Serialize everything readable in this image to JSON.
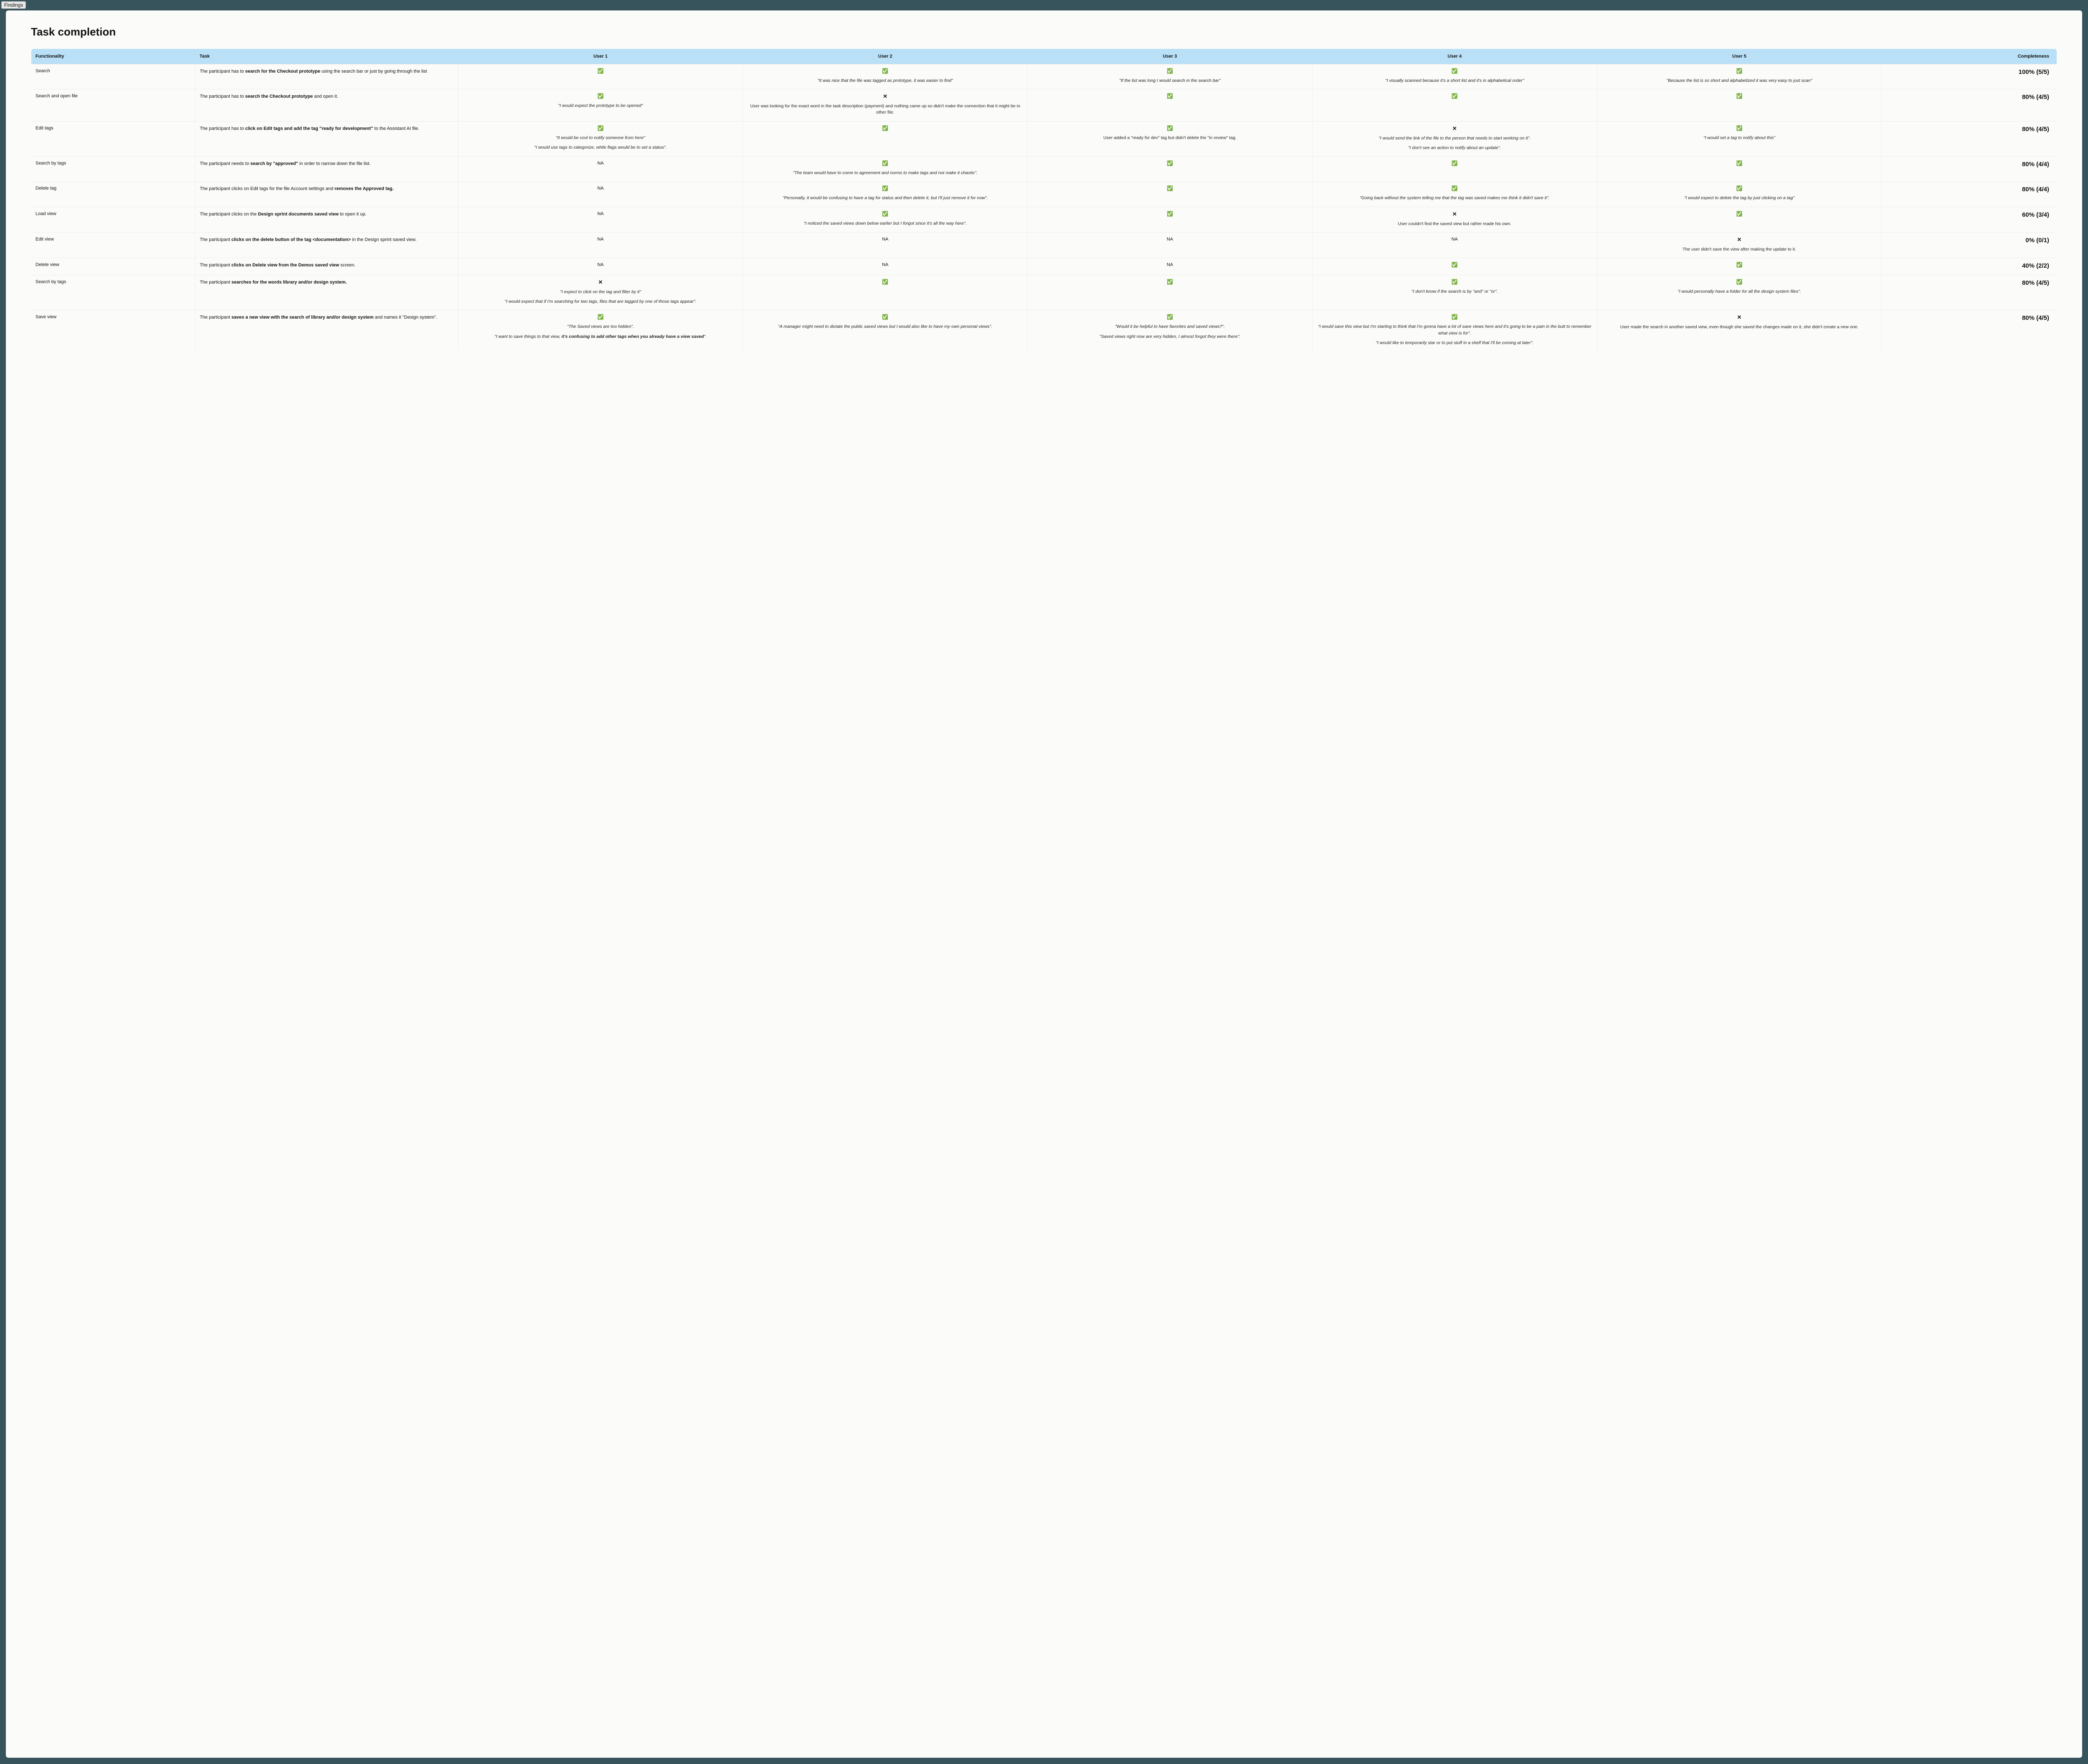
{
  "top_tab": "Findings",
  "title": "Task completion",
  "icons": {
    "check": "✅",
    "cross": "✕",
    "na": "NA"
  },
  "columns": {
    "functionality": "Functionality",
    "task": "Task",
    "users": [
      "User 1",
      "User 2",
      "User 3",
      "User 4",
      "User 5"
    ],
    "completeness": "Completeness"
  },
  "rows": [
    {
      "functionality": "Search",
      "task_parts": [
        {
          "t": "The participant has to "
        },
        {
          "t": "search for the Checkout prototype",
          "b": true
        },
        {
          "t": " using the search bar or just by going through the list"
        }
      ],
      "users": [
        {
          "status": "check",
          "notes": []
        },
        {
          "status": "check",
          "notes": [
            {
              "t": "\"It was nice that the file was tagged as prototype, it was easier to find\""
            }
          ]
        },
        {
          "status": "check",
          "notes": [
            {
              "t": "\"If the list was long I would search in the search bar\""
            }
          ]
        },
        {
          "status": "check",
          "notes": [
            {
              "t": "\"I visually scanned because it's a short list and it's in alphabetical order\""
            }
          ]
        },
        {
          "status": "check",
          "notes": [
            {
              "t": "\"Because the list is so short and alphabetized it was very easy to just scan\""
            }
          ]
        }
      ],
      "completeness": "100% (5/5)"
    },
    {
      "functionality": "Search and open file",
      "task_parts": [
        {
          "t": "The participant has to "
        },
        {
          "t": "search the Checkout prototype",
          "b": true
        },
        {
          "t": " and open it."
        }
      ],
      "users": [
        {
          "status": "check",
          "notes": [
            {
              "t": "\"I would expect the prototype to be opened\""
            }
          ]
        },
        {
          "status": "cross",
          "notes": [
            {
              "t": "User was looking for the exact word in the task description (payment) and nothing came up so didn't make the connection that it might be in other file.",
              "plain": true
            }
          ]
        },
        {
          "status": "check",
          "notes": []
        },
        {
          "status": "check",
          "notes": []
        },
        {
          "status": "check",
          "notes": []
        }
      ],
      "completeness": "80% (4/5)"
    },
    {
      "functionality": "Edit tags",
      "task_parts": [
        {
          "t": "The participant has to "
        },
        {
          "t": "click on Edit tags and add the tag \"ready for development\"",
          "b": true
        },
        {
          "t": " to the Assistant AI file."
        }
      ],
      "users": [
        {
          "status": "check",
          "notes": [
            {
              "t": "\"It would be cool to notify someone from here\""
            },
            {
              "t": "\"I would use tags to categorize, while flags would be to set a status\"."
            }
          ]
        },
        {
          "status": "check",
          "notes": []
        },
        {
          "status": "check",
          "notes": [
            {
              "t": "User added a \"ready for dev\" tag but didn't delete the \"in review\" tag.",
              "plain": true
            }
          ]
        },
        {
          "status": "cross",
          "notes": [
            {
              "t": "\"I would send the link of the file to the person that needs to start working on it\"."
            },
            {
              "t": "\"I don't see an action to notify about an update\"."
            }
          ]
        },
        {
          "status": "check",
          "notes": [
            {
              "t": "\"I would set a tag to notify about this\""
            }
          ]
        }
      ],
      "completeness": "80% (4/5)"
    },
    {
      "functionality": "Search by tags",
      "task_parts": [
        {
          "t": "The participant needs to "
        },
        {
          "t": "search by \"approved\"",
          "b": true
        },
        {
          "t": " in order to narrow down the file list."
        }
      ],
      "users": [
        {
          "status": "na",
          "notes": []
        },
        {
          "status": "check",
          "notes": [
            {
              "t": "\"The team would have to come to agreement and norms to make tags and not make it chaotic\"."
            }
          ]
        },
        {
          "status": "check",
          "notes": []
        },
        {
          "status": "check",
          "notes": []
        },
        {
          "status": "check",
          "notes": []
        }
      ],
      "completeness": "80% (4/4)"
    },
    {
      "functionality": "Delete tag",
      "task_parts": [
        {
          "t": "The participant clicks on Edit tags for the file Account settings and "
        },
        {
          "t": "removes the Approved tag.",
          "b": true
        }
      ],
      "users": [
        {
          "status": "na",
          "notes": []
        },
        {
          "status": "check",
          "notes": [
            {
              "t": "\"Personally, it would be confusing to have a tag for status and then delete it, but I'll just remove it for now\"."
            }
          ]
        },
        {
          "status": "check",
          "notes": []
        },
        {
          "status": "check",
          "notes": [
            {
              "t": "\"Going back without the system telling me that the tag was saved makes me think it didn't save it\"."
            }
          ]
        },
        {
          "status": "check",
          "notes": [
            {
              "t": "\"I would expect to delete the tag by just clicking on a tag\""
            }
          ]
        }
      ],
      "completeness": "80% (4/4)"
    },
    {
      "functionality": "Load view",
      "task_parts": [
        {
          "t": "The participant clicks on the "
        },
        {
          "t": "Design sprint documents saved view",
          "b": true
        },
        {
          "t": " to open it up."
        }
      ],
      "users": [
        {
          "status": "na",
          "notes": []
        },
        {
          "status": "check",
          "notes": [
            {
              "t": "\"I noticed the saved views down below earlier but I forgot since it's all the way here\"."
            }
          ]
        },
        {
          "status": "check",
          "notes": []
        },
        {
          "status": "cross",
          "notes": [
            {
              "t": "User couldn't find the saved view but rather made his own.",
              "plain": true
            }
          ]
        },
        {
          "status": "check",
          "notes": []
        }
      ],
      "completeness": "60% (3/4)"
    },
    {
      "functionality": "Edit view",
      "task_parts": [
        {
          "t": "The participant "
        },
        {
          "t": "clicks on the delete button of the tag <documentation>",
          "b": true
        },
        {
          "t": " in the Design sprint saved view."
        }
      ],
      "users": [
        {
          "status": "na",
          "notes": []
        },
        {
          "status": "na",
          "notes": []
        },
        {
          "status": "na",
          "notes": []
        },
        {
          "status": "na",
          "notes": []
        },
        {
          "status": "cross",
          "notes": [
            {
              "t": "The user didn't save the view after making the update to it.",
              "plain": true
            }
          ]
        }
      ],
      "completeness": "0% (0/1)"
    },
    {
      "functionality": "Delete view",
      "task_parts": [
        {
          "t": "The participant "
        },
        {
          "t": "clicks on Delete view from the Demos saved view",
          "b": true
        },
        {
          "t": " screen."
        }
      ],
      "users": [
        {
          "status": "na",
          "notes": []
        },
        {
          "status": "na",
          "notes": []
        },
        {
          "status": "na",
          "notes": []
        },
        {
          "status": "check",
          "notes": []
        },
        {
          "status": "check",
          "notes": []
        }
      ],
      "completeness": "40% (2/2)"
    },
    {
      "functionality": "Search by tags",
      "task_parts": [
        {
          "t": "The participant "
        },
        {
          "t": "searches for the words library and/or design system.",
          "b": true
        }
      ],
      "users": [
        {
          "status": "cross",
          "notes": [
            {
              "t": "\"I expect to click on the tag and filter by it\""
            },
            {
              "t": "\"I would expect that if I'm searching for two tags, files that are tagged by one of those tags appear\"."
            }
          ]
        },
        {
          "status": "check",
          "notes": []
        },
        {
          "status": "check",
          "notes": []
        },
        {
          "status": "check",
          "notes": [
            {
              "t": "\"I don't know if the search is by \"and\" or \"or\"."
            }
          ]
        },
        {
          "status": "check",
          "notes": [
            {
              "t": "\"I would personally have a folder for all the design system files\"."
            }
          ]
        }
      ],
      "completeness": "80% (4/5)"
    },
    {
      "functionality": "Save view",
      "task_parts": [
        {
          "t": "The participant "
        },
        {
          "t": "saves a new view with the search of library and/or design system",
          "b": true
        },
        {
          "t": " and names it \"Design system\"."
        }
      ],
      "users": [
        {
          "status": "check",
          "notes": [
            {
              "t": "\"The Saved views are too hidden\"."
            },
            {
              "mixed": [
                {
                  "t": "\"I want to save things to that view, "
                },
                {
                  "t": "it's confusing to add other tags when you already have a view saved",
                  "b": true
                },
                {
                  "t": "\"."
                }
              ]
            }
          ]
        },
        {
          "status": "check",
          "notes": [
            {
              "t": "\"A manager might need to dictate the public saved views but I would also like to have my own personal views\"."
            }
          ]
        },
        {
          "status": "check",
          "notes": [
            {
              "t": "\"Would it be helpful to have favorites and saved views?\"."
            },
            {
              "t": "\"Saved views right now are very hidden, I almost forgot they were there\"."
            }
          ]
        },
        {
          "status": "check",
          "notes": [
            {
              "t": "\"I would save this view but I'm starting to think that I'm gonna have a lot of save views here and it's going to be a pain in the butt to remember what view is for\"."
            },
            {
              "t": "\"I would like to temporarily star or to put stuff in a shelf that I'll be coming at later\"."
            }
          ]
        },
        {
          "status": "cross",
          "notes": [
            {
              "t": "User made the search in another saved view, even though she saved the changes made on it, she didn't create a new one.",
              "plain": true
            }
          ]
        }
      ],
      "completeness": "80% (4/5)"
    }
  ]
}
